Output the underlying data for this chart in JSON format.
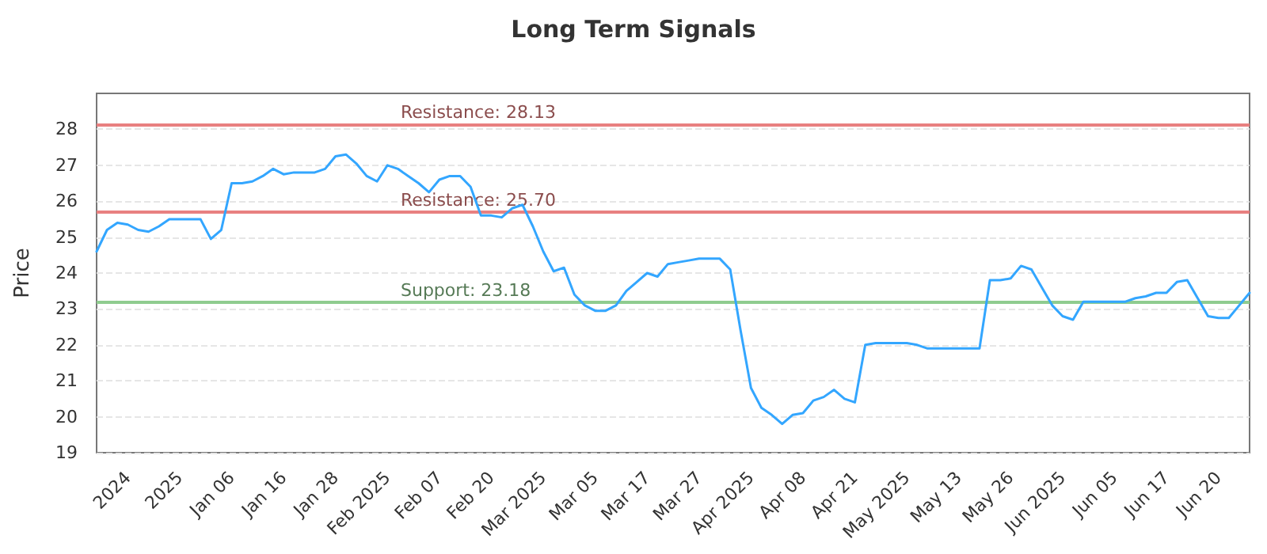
{
  "chart_data": {
    "type": "line",
    "title": "Long Term Signals",
    "ylabel": "Price",
    "categories": [
      null,
      null,
      null,
      "2024",
      null,
      null,
      null,
      null,
      "2025",
      null,
      null,
      null,
      null,
      "Jan 06",
      null,
      null,
      null,
      null,
      "Jan 16",
      null,
      null,
      null,
      null,
      "Jan 28",
      null,
      null,
      null,
      null,
      "Feb 2025",
      null,
      null,
      null,
      null,
      "Feb 07",
      null,
      null,
      null,
      null,
      "Feb 20",
      null,
      null,
      null,
      null,
      "Mar 2025",
      null,
      null,
      null,
      null,
      "Mar 05",
      null,
      null,
      null,
      null,
      "Mar 17",
      null,
      null,
      null,
      null,
      "Mar 27",
      null,
      null,
      null,
      null,
      "Apr 2025",
      null,
      null,
      null,
      null,
      "Apr 08",
      null,
      null,
      null,
      null,
      "Apr 21",
      null,
      null,
      null,
      null,
      "May 2025",
      null,
      null,
      null,
      null,
      "May 13",
      null,
      null,
      null,
      null,
      "May 26",
      null,
      null,
      null,
      null,
      "Jun 2025",
      null,
      null,
      null,
      null,
      "Jun 05",
      null,
      null,
      null,
      null,
      "Jun 17",
      null,
      null,
      null,
      null,
      "Jun 20",
      null,
      null,
      null
    ],
    "series": [
      {
        "color": "#33a6ff",
        "values": [
          24.6,
          25.2,
          25.4,
          25.35,
          25.2,
          25.15,
          25.3,
          25.5,
          25.5,
          25.5,
          25.5,
          24.95,
          25.2,
          26.5,
          26.5,
          26.55,
          26.7,
          26.9,
          26.75,
          26.8,
          26.8,
          26.8,
          26.9,
          27.25,
          27.3,
          27.05,
          26.7,
          26.55,
          27.0,
          26.9,
          26.7,
          26.5,
          26.25,
          26.6,
          26.7,
          26.7,
          26.4,
          25.6,
          25.6,
          25.55,
          25.8,
          25.9,
          25.3,
          24.6,
          24.05,
          24.15,
          23.4,
          23.1,
          22.95,
          22.95,
          23.1,
          23.5,
          23.75,
          24.0,
          23.9,
          24.25,
          24.3,
          24.35,
          24.4,
          24.4,
          24.4,
          24.1,
          22.4,
          20.8,
          20.25,
          20.05,
          19.8,
          20.05,
          20.1,
          20.45,
          20.55,
          20.75,
          20.5,
          20.4,
          22.0,
          22.05,
          22.05,
          22.05,
          22.05,
          22.0,
          21.9,
          21.9,
          21.9,
          21.9,
          21.9,
          21.9,
          23.8,
          23.8,
          23.85,
          24.2,
          24.1,
          23.6,
          23.1,
          22.8,
          22.7,
          23.2,
          23.2,
          23.2,
          23.2,
          23.2,
          23.3,
          23.35,
          23.45,
          23.45,
          23.75,
          23.8,
          23.3,
          22.8,
          22.75,
          22.75,
          23.1,
          23.45
        ]
      }
    ],
    "ylim": [
      19,
      29
    ],
    "yticks": [
      19,
      20,
      21,
      22,
      23,
      24,
      25,
      26,
      27,
      28
    ],
    "grid": "y",
    "marker": "none",
    "line_style": "solid",
    "ref_lines": [
      {
        "axis": "y",
        "value": 28.13,
        "label": "Resistance: 28.13",
        "color": "#e88080"
      },
      {
        "axis": "y",
        "value": 25.7,
        "label": "Resistance: 25.70",
        "color": "#e88080"
      },
      {
        "axis": "y",
        "value": 23.18,
        "label": "Support: 23.18",
        "color": "#8fcc8f"
      }
    ]
  }
}
